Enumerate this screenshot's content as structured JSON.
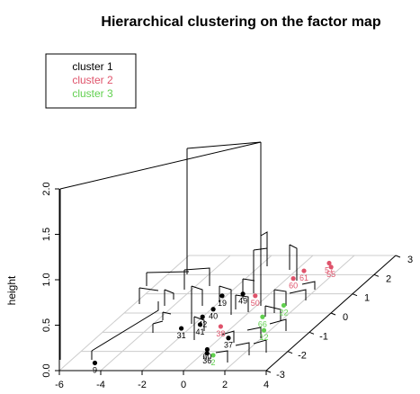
{
  "chart_data": {
    "type": "scatter",
    "subtype": "3d-dendrogram",
    "title": "Hierarchical clustering on the factor map",
    "zlabel": "height",
    "xlim": [
      -6,
      4
    ],
    "ylim": [
      -3,
      3
    ],
    "zlim": [
      0,
      2
    ],
    "x_ticks": [
      "-6",
      "-4",
      "-2",
      "0",
      "2",
      "4"
    ],
    "y_ticks": [
      "-3",
      "-2",
      "-1",
      "0",
      "1",
      "2",
      "3"
    ],
    "z_ticks": [
      "0.0",
      "0.5",
      "1.0",
      "1.5",
      "2.0"
    ],
    "grid": true,
    "legend_position": "top-left",
    "legend": [
      {
        "name": "cluster 1",
        "color": "#000000"
      },
      {
        "name": "cluster 2",
        "color": "#DF536B"
      },
      {
        "name": "cluster 3",
        "color": "#61D04F"
      }
    ],
    "series": [
      {
        "name": "cluster 1",
        "color": "#000000",
        "points": [
          {
            "label": "9",
            "x": -4.7,
            "y": -2.6,
            "z": 0
          },
          {
            "label": "31",
            "x": -2.4,
            "y": -0.8,
            "z": 0
          },
          {
            "label": "41",
            "x": -1.7,
            "y": -0.6,
            "z": 0
          },
          {
            "label": "42",
            "x": -2.0,
            "y": -0.2,
            "z": 0
          },
          {
            "label": "40",
            "x": -1.9,
            "y": 0.2,
            "z": 0
          },
          {
            "label": "19",
            "x": -2.2,
            "y": 0.9,
            "z": 0
          },
          {
            "label": "49",
            "x": -1.3,
            "y": 1.0,
            "z": 0
          },
          {
            "label": "37",
            "x": 0.4,
            "y": -1.3,
            "z": 0
          },
          {
            "label": "60",
            "x": 0.0,
            "y": -1.9,
            "z": 0
          },
          {
            "label": "36",
            "x": 0.2,
            "y": -2.1,
            "z": 0
          }
        ]
      },
      {
        "name": "cluster 2",
        "color": "#DF536B",
        "points": [
          {
            "label": "61",
            "x": 0.4,
            "y": 2.2,
            "z": 0
          },
          {
            "label": "57",
            "x": 1.2,
            "y": 2.6,
            "z": 0
          },
          {
            "label": "55",
            "x": 1.5,
            "y": 2.4,
            "z": 0
          },
          {
            "label": "60",
            "x": 0.3,
            "y": 1.8,
            "z": 0
          },
          {
            "label": "50",
            "x": -0.6,
            "y": 0.9,
            "z": 0
          },
          {
            "label": "38",
            "x": -0.6,
            "y": -0.7,
            "z": 0
          }
        ]
      },
      {
        "name": "cluster 3",
        "color": "#61D04F",
        "points": [
          {
            "label": "22",
            "x": 1.3,
            "y": 0.4,
            "z": 0
          },
          {
            "label": "12",
            "x": 1.7,
            "y": -0.9,
            "z": 0
          },
          {
            "label": "66",
            "x": 0.9,
            "y": -0.2,
            "z": 0
          },
          {
            "label": "2",
            "x": 0.6,
            "y": -2.2,
            "z": 0
          }
        ]
      }
    ]
  }
}
